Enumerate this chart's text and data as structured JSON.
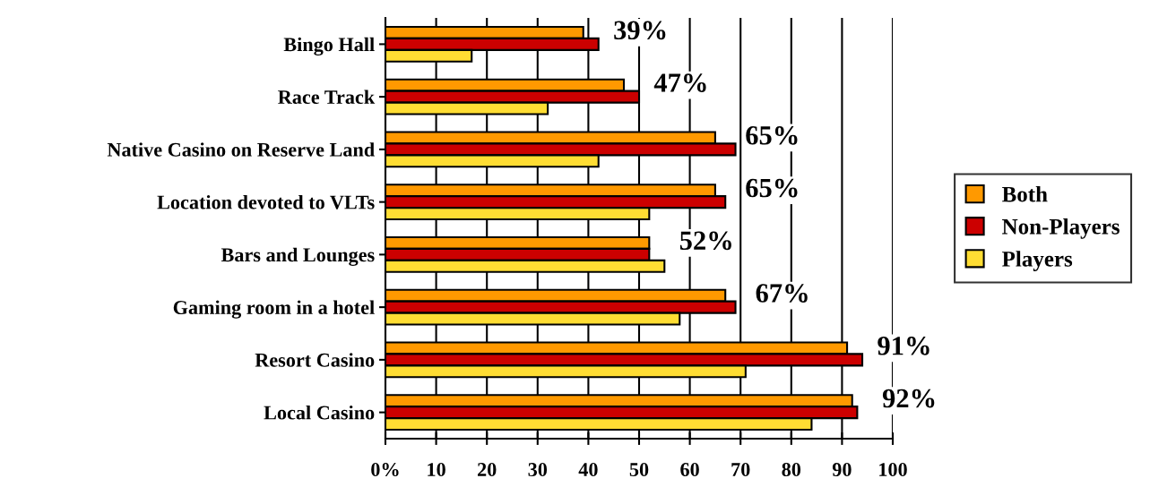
{
  "chart_data": {
    "type": "bar",
    "orientation": "horizontal",
    "categories": [
      "Bingo Hall",
      "Race Track",
      "Native Casino on Reserve Land",
      "Location devoted to VLTs",
      "Bars and Lounges",
      "Gaming room in a hotel",
      "Resort Casino",
      "Local Casino"
    ],
    "series": [
      {
        "name": "Both",
        "color": "#ff9900",
        "values": [
          39,
          47,
          65,
          65,
          52,
          67,
          91,
          92
        ],
        "value_labels": [
          "39%",
          "47%",
          "65%",
          "65%",
          "52%",
          "67%",
          "91%",
          "92%"
        ]
      },
      {
        "name": "Non-Players",
        "color": "#cc0000",
        "values": [
          42,
          50,
          69,
          67,
          52,
          69,
          94,
          93
        ]
      },
      {
        "name": "Players",
        "color": "#ffdd33",
        "values": [
          17,
          32,
          42,
          52,
          55,
          58,
          71,
          84
        ]
      }
    ],
    "xlim": [
      0,
      100
    ],
    "xticks": [
      {
        "value": 0,
        "label": "0%"
      },
      10,
      20,
      30,
      40,
      50,
      60,
      70,
      80,
      90,
      100
    ],
    "grid": "x",
    "legend": "right"
  }
}
